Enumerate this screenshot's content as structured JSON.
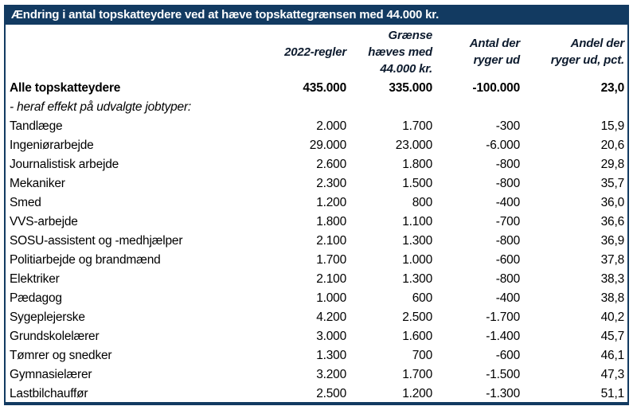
{
  "colors": {
    "navy": "#123a61",
    "title_text": "#ffffff",
    "body_text": "#000000"
  },
  "chart_data": {
    "type": "table",
    "title": "Ændring i antal topskatteydere ved at hæve topskattegrænsen med 44.000 kr.",
    "columns": {
      "label": "",
      "col1": "2022-regler",
      "col2": "Grænse hæves med 44.000 kr.",
      "col3": "Antal der ryger ud",
      "col4": "Andel der ryger ud, pct."
    },
    "rows": [
      {
        "label": "Alle topskatteydere",
        "values": [
          "435.000",
          "335.000",
          "-100.000",
          "23,0"
        ],
        "style": "bold"
      },
      {
        "label": "- heraf effekt på udvalgte jobtyper:",
        "values": [
          "",
          "",
          "",
          ""
        ],
        "style": "italic"
      },
      {
        "label": "Tandlæge",
        "values": [
          "2.000",
          "1.700",
          "-300",
          "15,9"
        ],
        "style": ""
      },
      {
        "label": "Ingeniørarbejde",
        "values": [
          "29.000",
          "23.000",
          "-6.000",
          "20,6"
        ],
        "style": ""
      },
      {
        "label": "Journalistisk arbejde",
        "values": [
          "2.600",
          "1.800",
          "-800",
          "29,8"
        ],
        "style": ""
      },
      {
        "label": "Mekaniker",
        "values": [
          "2.300",
          "1.500",
          "-800",
          "35,7"
        ],
        "style": ""
      },
      {
        "label": "Smed",
        "values": [
          "1.200",
          "800",
          "-400",
          "36,0"
        ],
        "style": ""
      },
      {
        "label": "VVS-arbejde",
        "values": [
          "1.800",
          "1.100",
          "-700",
          "36,6"
        ],
        "style": ""
      },
      {
        "label": "SOSU-assistent og -medhjælper",
        "values": [
          "2.100",
          "1.300",
          "-800",
          "36,9"
        ],
        "style": ""
      },
      {
        "label": "Politiarbejde og brandmænd",
        "values": [
          "1.700",
          "1.000",
          "-600",
          "37,8"
        ],
        "style": ""
      },
      {
        "label": "Elektriker",
        "values": [
          "2.100",
          "1.300",
          "-800",
          "38,3"
        ],
        "style": ""
      },
      {
        "label": "Pædagog",
        "values": [
          "1.000",
          "600",
          "-400",
          "38,8"
        ],
        "style": ""
      },
      {
        "label": "Sygeplejerske",
        "values": [
          "4.200",
          "2.500",
          "-1.700",
          "40,2"
        ],
        "style": ""
      },
      {
        "label": "Grundskolelærer",
        "values": [
          "3.000",
          "1.600",
          "-1.400",
          "45,7"
        ],
        "style": ""
      },
      {
        "label": "Tømrer og snedker",
        "values": [
          "1.300",
          "700",
          "-600",
          "46,1"
        ],
        "style": ""
      },
      {
        "label": "Gymnasielærer",
        "values": [
          "3.200",
          "1.700",
          "-1.500",
          "47,3"
        ],
        "style": ""
      },
      {
        "label": "Lastbilchauffør",
        "values": [
          "2.500",
          "1.200",
          "-1.300",
          "51,1"
        ],
        "style": ""
      }
    ]
  }
}
